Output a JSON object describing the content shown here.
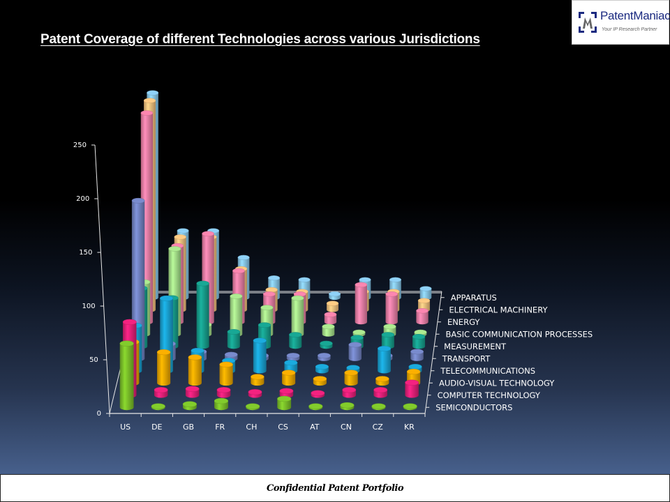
{
  "slide": {
    "title": "Patent Coverage  of different Technologies across various Jurisdictions",
    "footer": "Confidential Patent Portfolio",
    "logo": {
      "brand": "PatentManiac",
      "tagline": "Your IP Research Partner",
      "icon": "patentmaniac-logo-icon"
    }
  },
  "chart_data": {
    "type": "bar",
    "subtype": "3d-cylinder-column",
    "title": "Patent Coverage  of different Technologies across various Jurisdictions",
    "xlabel": "",
    "ylabel": "",
    "ylim": [
      0,
      250
    ],
    "yticks": [
      0,
      50,
      100,
      150,
      200,
      250
    ],
    "grid": false,
    "legend": "series labels on depth axis (right)",
    "categories": [
      "US",
      "DE",
      "GB",
      "FR",
      "CH",
      "CS",
      "AT",
      "CN",
      "CZ",
      "KR"
    ],
    "series": [
      {
        "name": "SEMICONDUCTORS",
        "color": "#7cc22a",
        "values": [
          60,
          1,
          3,
          6,
          1,
          8,
          1,
          2,
          1,
          1
        ]
      },
      {
        "name": "COMPUTER TECHNOLOGY",
        "color": "#e8207a",
        "values": [
          70,
          5,
          6,
          5,
          3,
          4,
          2,
          5,
          5,
          12
        ]
      },
      {
        "name": "AUDIO-VISUAL TECHNOLOGY",
        "color": "#f0a800",
        "values": [
          40,
          30,
          25,
          18,
          6,
          10,
          4,
          10,
          4,
          11
        ]
      },
      {
        "name": "TELECOMMUNICATIONS",
        "color": "#1aa3d4",
        "values": [
          45,
          72,
          20,
          10,
          30,
          8,
          4,
          3,
          22,
          4
        ]
      },
      {
        "name": "TRANSPORT",
        "color": "#7384c4",
        "values": [
          160,
          15,
          7,
          4,
          3,
          3,
          3,
          14,
          3,
          7
        ]
      },
      {
        "name": "MEASUREMENT",
        "color": "#17a08e",
        "values": [
          60,
          50,
          65,
          15,
          22,
          12,
          3,
          9,
          12,
          10
        ]
      },
      {
        "name": "BASIC COMMUNICATION PROCESSES",
        "color": "#a6e08a",
        "values": [
          55,
          90,
          10,
          40,
          28,
          38,
          8,
          2,
          8,
          2
        ]
      },
      {
        "name": "ENERGY",
        "color": "#f080a8",
        "values": [
          225,
          82,
          95,
          55,
          30,
          30,
          8,
          40,
          30,
          12
        ]
      },
      {
        "name": "ELECTRICAL MACHINERY",
        "color": "#f8c27e",
        "values": [
          230,
          80,
          80,
          45,
          22,
          20,
          7,
          20,
          20,
          10
        ]
      },
      {
        "name": "APPARATUS",
        "color": "#88c8ec",
        "values": [
          230,
          75,
          75,
          45,
          22,
          20,
          4,
          20,
          20,
          10
        ]
      }
    ]
  }
}
